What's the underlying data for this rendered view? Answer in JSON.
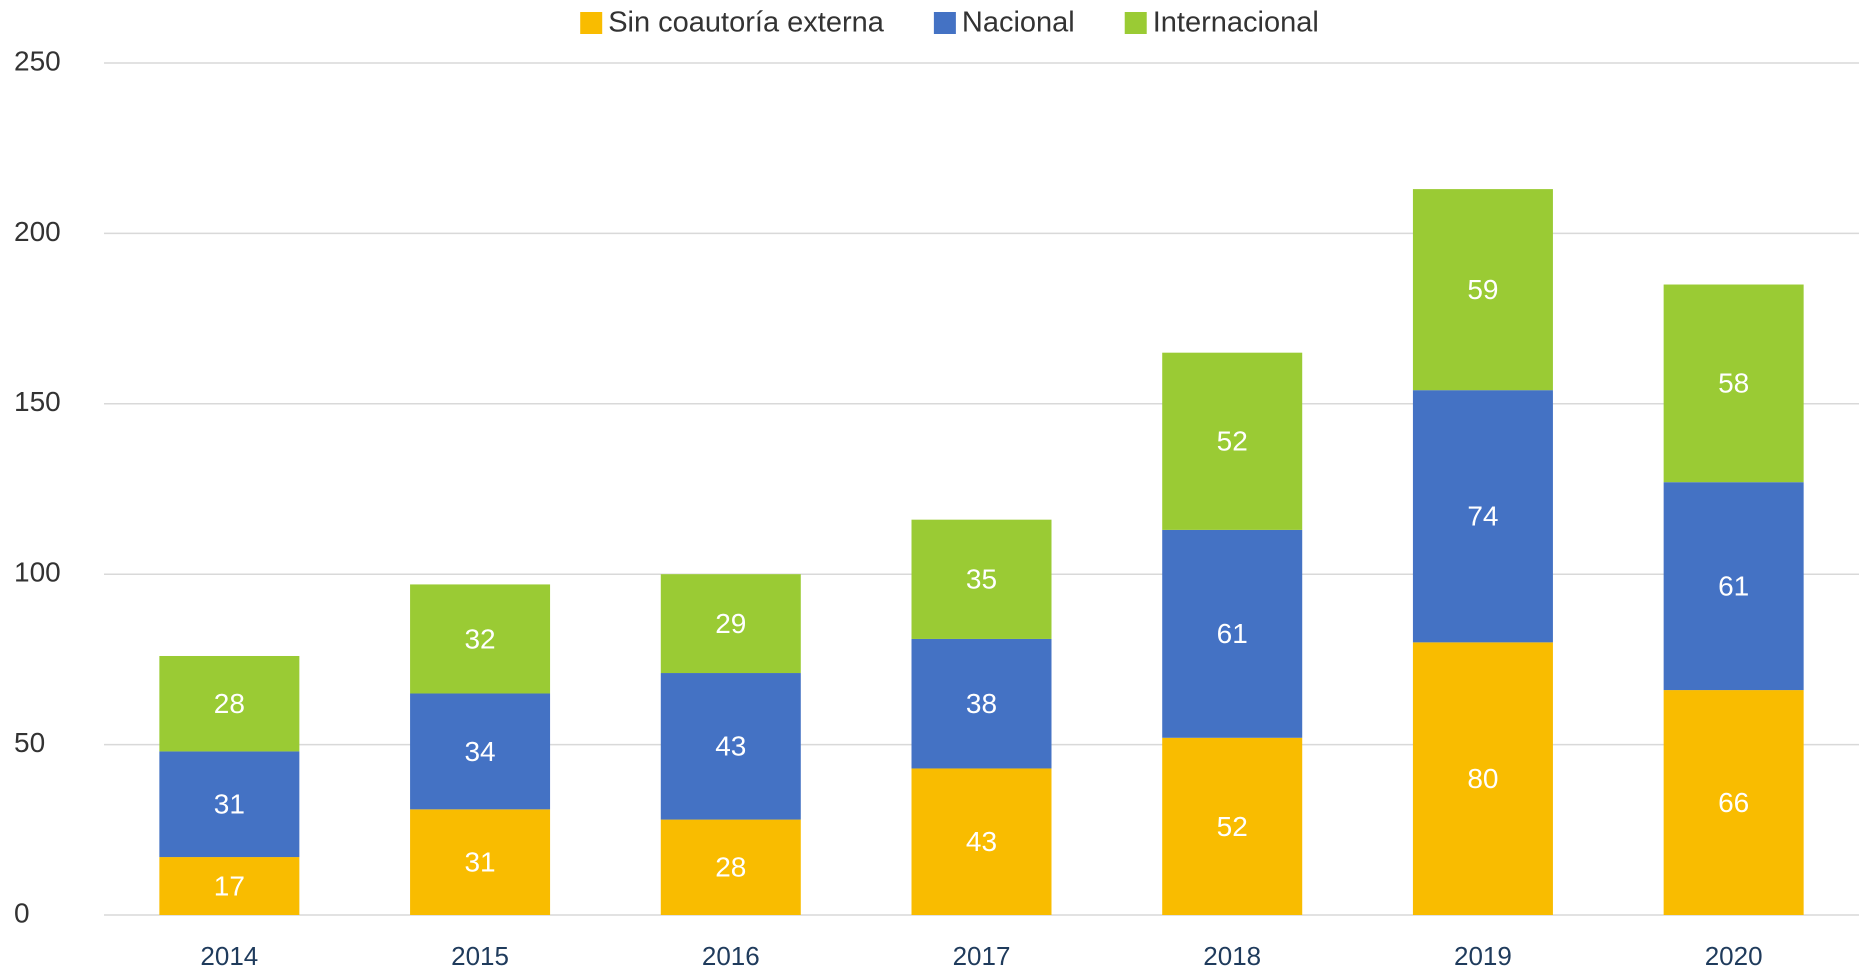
{
  "chart_data": {
    "type": "stacked_bar",
    "categories": [
      "2014",
      "2015",
      "2016",
      "2017",
      "2018",
      "2019",
      "2020"
    ],
    "series": [
      {
        "name": "Sin coautoría externa",
        "color": "#f9bc00",
        "values": [
          17,
          31,
          28,
          43,
          52,
          80,
          66
        ]
      },
      {
        "name": "Nacional",
        "color": "#4472c4",
        "values": [
          31,
          34,
          43,
          38,
          61,
          74,
          61
        ]
      },
      {
        "name": "Internacional",
        "color": "#9acb34",
        "values": [
          28,
          32,
          29,
          35,
          52,
          59,
          58
        ]
      }
    ],
    "ylim": [
      0,
      250
    ],
    "yticks": [
      0,
      50,
      100,
      150,
      200,
      250
    ],
    "grid": true,
    "legend": "top"
  }
}
